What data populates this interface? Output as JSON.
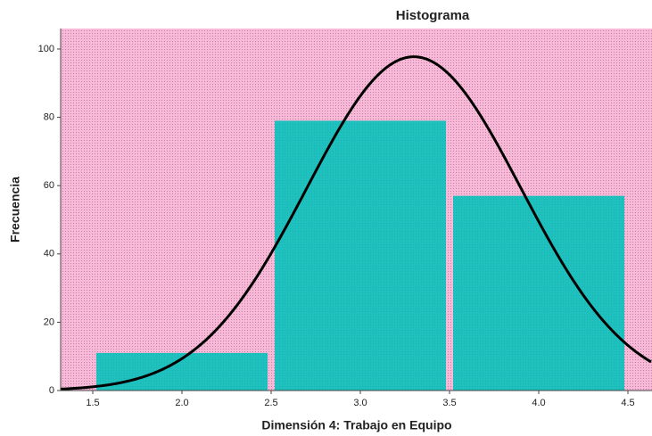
{
  "chart_data": {
    "type": "histogram",
    "title": "Histograma",
    "x_label": "Dimensión 4: Trabajo en Equipo",
    "y_label": "Frecuencia",
    "bins": [
      1.5,
      2.5,
      3.5,
      4.5
    ],
    "values": [
      11,
      79,
      57
    ],
    "color": "#1fc1be",
    "background": "#f7b9d7",
    "curve": {
      "mean": 3.3,
      "std_dev": 0.6,
      "color": "#000000"
    },
    "xlim": [
      1.32,
      4.635
    ],
    "ylim": [
      0,
      106
    ],
    "xticks": [
      1.5,
      {
        "value": 2,
        "label": "2.0"
      },
      2.5,
      {
        "value": 3,
        "label": "3.0"
      },
      3.5,
      {
        "value": 4,
        "label": "4.0"
      },
      4.5
    ],
    "yticks": [
      0,
      20,
      40,
      60,
      80,
      100
    ]
  }
}
